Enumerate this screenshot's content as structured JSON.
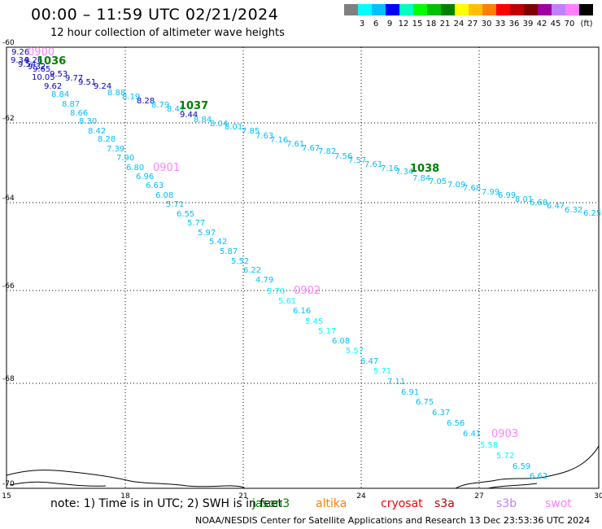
{
  "title": "00:00 – 11:59 UTC 02/21/2024",
  "subtitle": "12 hour collection of altimeter wave heights",
  "colorbar": {
    "colors": [
      "#808080",
      "#00ffff",
      "#00bfff",
      "#0000ff",
      "#00ffc0",
      "#00ff00",
      "#00c000",
      "#008000",
      "#ffff00",
      "#ffc000",
      "#ff8000",
      "#ff0000",
      "#c00000",
      "#800000",
      "#a000a0",
      "#c080ff",
      "#ff80ff",
      "#000000"
    ],
    "labels": [
      "3",
      "6",
      "9",
      "12",
      "15",
      "18",
      "21",
      "24",
      "27",
      "30",
      "33",
      "36",
      "39",
      "42",
      "45",
      "70"
    ],
    "unit": "(ft)"
  },
  "axes": {
    "x_ticks": [
      "15",
      "18",
      "21",
      "24",
      "27",
      "30"
    ],
    "y_ticks": [
      "-60",
      "-62",
      "-64",
      "-66",
      "-68",
      "-70"
    ]
  },
  "tracks": [
    {
      "pass_label": "0900",
      "pass_color": "#ff80ff",
      "end_label": "1036",
      "end_color": "#008000",
      "points": [
        {
          "v": "9.26",
          "c": "#0000c0"
        },
        {
          "v": "9.34",
          "c": "#0000c0"
        },
        {
          "v": "9.26",
          "c": "#0000c0"
        },
        {
          "v": "9.54",
          "c": "#0000c0"
        },
        {
          "v": "9.32",
          "c": "#0000c0"
        },
        {
          "v": "9.65",
          "c": "#0000c0"
        },
        {
          "v": "10.05",
          "c": "#0000c0"
        },
        {
          "v": "9.53",
          "c": "#0000c0"
        },
        {
          "v": "9.77",
          "c": "#0000c0"
        },
        {
          "v": "9.62",
          "c": "#0000c0"
        },
        {
          "v": "9.51",
          "c": "#0000c0"
        },
        {
          "v": "9.24",
          "c": "#0000c0"
        },
        {
          "v": "8.88",
          "c": "#00bfff"
        },
        {
          "v": "8.19",
          "c": "#00bfff"
        },
        {
          "v": "8.28",
          "c": "#0000c0"
        },
        {
          "v": "8.79",
          "c": "#00bfff"
        },
        {
          "v": "8.41",
          "c": "#00bfff"
        },
        {
          "v": "9.44",
          "c": "#0000c0"
        }
      ]
    },
    {
      "end_label": "1037",
      "end_color": "#008000",
      "points": [
        {
          "v": "8.84",
          "c": "#00bfff"
        },
        {
          "v": "8.04",
          "c": "#00bfff"
        },
        {
          "v": "8.01",
          "c": "#00bfff"
        },
        {
          "v": "7.85",
          "c": "#00bfff"
        },
        {
          "v": "7.63",
          "c": "#00bfff"
        },
        {
          "v": "7.16",
          "c": "#00bfff"
        },
        {
          "v": "7.61",
          "c": "#00bfff"
        },
        {
          "v": "7.67",
          "c": "#00bfff"
        },
        {
          "v": "7.82",
          "c": "#00bfff"
        },
        {
          "v": "7.56",
          "c": "#00bfff"
        },
        {
          "v": "7.57",
          "c": "#00bfff"
        },
        {
          "v": "7.61",
          "c": "#00bfff"
        },
        {
          "v": "7.16",
          "c": "#00bfff"
        },
        {
          "v": "7.34",
          "c": "#00bfff"
        },
        {
          "v": "7.84",
          "c": "#00bfff"
        },
        {
          "v": "7.05",
          "c": "#00bfff"
        },
        {
          "v": "7.09",
          "c": "#00bfff"
        },
        {
          "v": "7.68",
          "c": "#00bfff"
        },
        {
          "v": "7.99",
          "c": "#00bfff"
        },
        {
          "v": "6.99",
          "c": "#00bfff"
        },
        {
          "v": "8.01",
          "c": "#00bfff"
        },
        {
          "v": "6.68",
          "c": "#00bfff"
        },
        {
          "v": "6.47",
          "c": "#00bfff"
        },
        {
          "v": "6.32",
          "c": "#00bfff"
        },
        {
          "v": "6.25",
          "c": "#00bfff"
        }
      ]
    },
    {
      "end_label": "1038",
      "end_color": "#008000",
      "points": []
    },
    {
      "pass_label": "0901",
      "pass_color": "#ff80ff",
      "points": [
        {
          "v": "8.84",
          "c": "#00bfff"
        },
        {
          "v": "8.87",
          "c": "#00bfff"
        },
        {
          "v": "8.66",
          "c": "#00bfff"
        },
        {
          "v": "8.30",
          "c": "#00bfff"
        },
        {
          "v": "8.42",
          "c": "#00bfff"
        },
        {
          "v": "8.28",
          "c": "#00bfff"
        },
        {
          "v": "7.39",
          "c": "#00bfff"
        },
        {
          "v": "7.90",
          "c": "#00bfff"
        },
        {
          "v": "6.80",
          "c": "#00bfff"
        },
        {
          "v": "6.96",
          "c": "#00bfff"
        },
        {
          "v": "6.63",
          "c": "#00bfff"
        },
        {
          "v": "6.08",
          "c": "#00bfff"
        },
        {
          "v": "5.71",
          "c": "#00bfff"
        },
        {
          "v": "6.55",
          "c": "#00bfff"
        },
        {
          "v": "5.77",
          "c": "#00bfff"
        },
        {
          "v": "5.97",
          "c": "#00bfff"
        },
        {
          "v": "5.42",
          "c": "#00bfff"
        },
        {
          "v": "5.87",
          "c": "#00bfff"
        },
        {
          "v": "5.52",
          "c": "#00bfff"
        },
        {
          "v": "6.22",
          "c": "#00bfff"
        },
        {
          "v": "4.79",
          "c": "#00bfff"
        }
      ]
    },
    {
      "pass_label": "0902",
      "pass_color": "#ff80ff",
      "points": [
        {
          "v": "5.70",
          "c": "#00ffff"
        },
        {
          "v": "5.61",
          "c": "#00ffff"
        },
        {
          "v": "6.16",
          "c": "#00bfff"
        },
        {
          "v": "5.45",
          "c": "#00ffff"
        },
        {
          "v": "5.17",
          "c": "#00ffff"
        },
        {
          "v": "6.08",
          "c": "#00bfff"
        },
        {
          "v": "5.57",
          "c": "#00ffff"
        },
        {
          "v": "6.47",
          "c": "#00bfff"
        },
        {
          "v": "5.71",
          "c": "#00ffff"
        },
        {
          "v": "7.11",
          "c": "#00bfff"
        },
        {
          "v": "6.91",
          "c": "#00bfff"
        },
        {
          "v": "6.75",
          "c": "#00bfff"
        },
        {
          "v": "6.37",
          "c": "#00bfff"
        },
        {
          "v": "6.56",
          "c": "#00bfff"
        },
        {
          "v": "6.41",
          "c": "#00bfff"
        }
      ]
    },
    {
      "pass_label": "0903",
      "pass_color": "#ff80ff",
      "points": [
        {
          "v": "5.58",
          "c": "#00ffff"
        },
        {
          "v": "5.72",
          "c": "#00ffff"
        },
        {
          "v": "6.59",
          "c": "#00bfff"
        },
        {
          "v": "6.62",
          "c": "#00bfff"
        }
      ]
    }
  ],
  "footer": {
    "note": "note:  1) Time is in UTC;  2) SWH is in feet",
    "legend": [
      {
        "name": "jason3",
        "color": "#008000"
      },
      {
        "name": "altika",
        "color": "#ff8000"
      },
      {
        "name": "cryosat",
        "color": "#ff0000"
      },
      {
        "name": "s3a",
        "color": "#c00000"
      },
      {
        "name": "s3b",
        "color": "#c080ff"
      },
      {
        "name": "swot",
        "color": "#ff80ff"
      }
    ],
    "credit": "NOAA/NESDIS Center for Satellite Applications and Research    13 Dec 23:53:36 UTC 2024"
  }
}
